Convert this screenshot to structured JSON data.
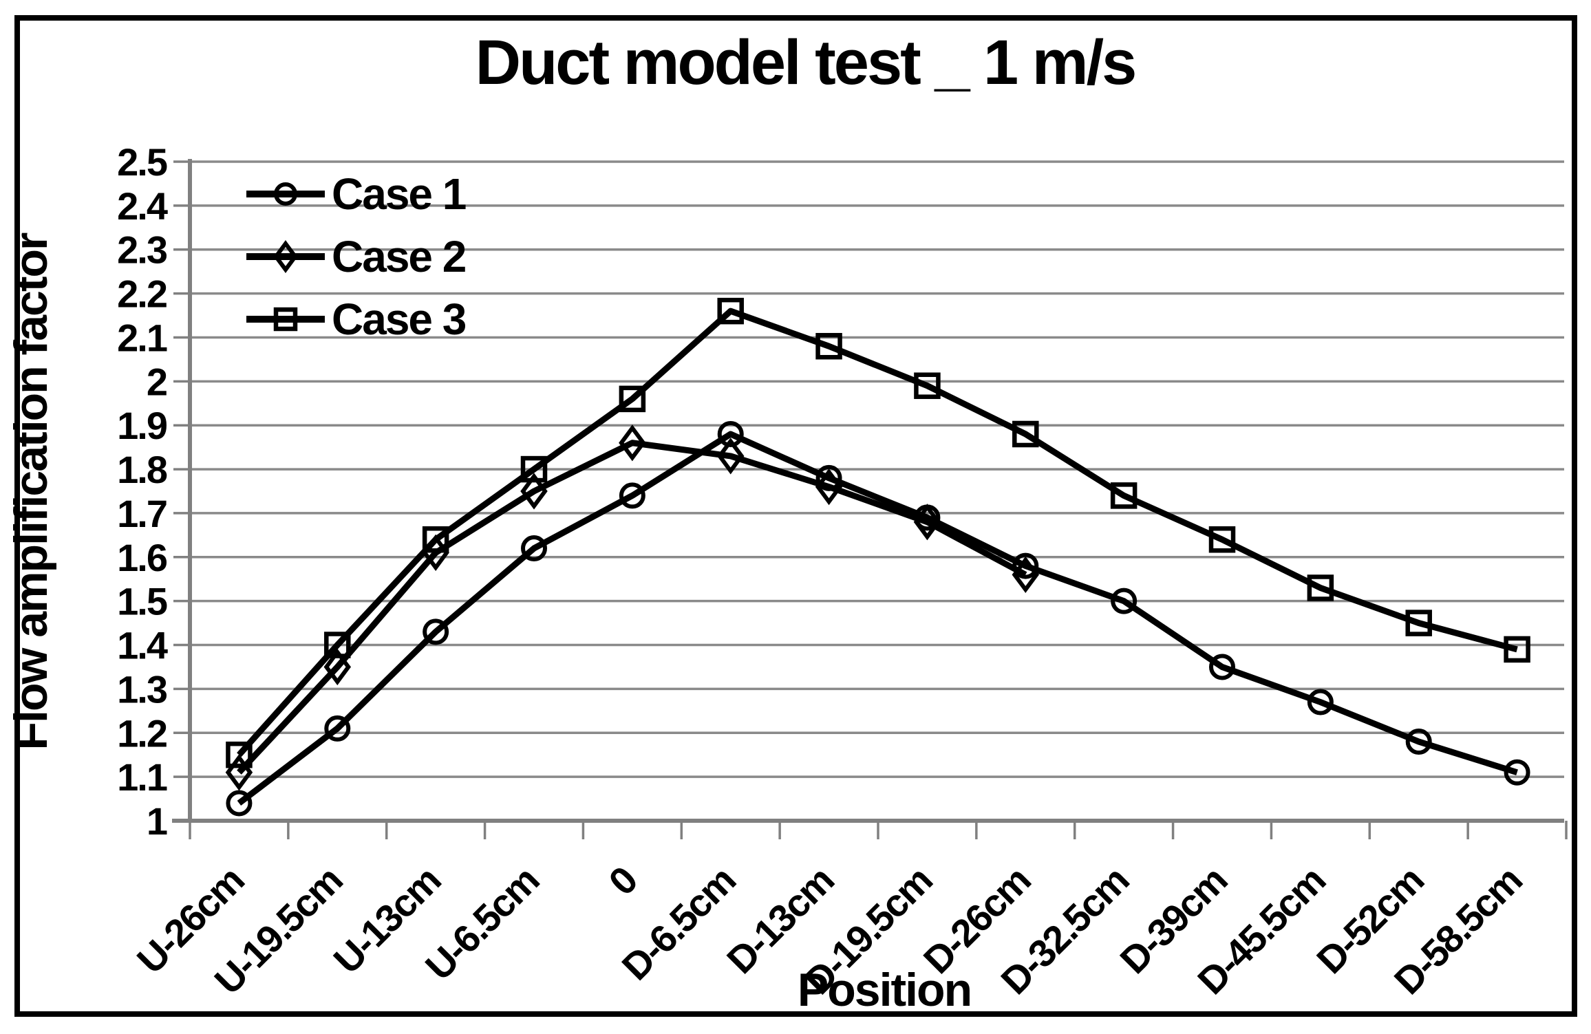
{
  "chart_data": {
    "type": "line",
    "title": "Duct model test _ 1 m/s",
    "xlabel": "Position",
    "ylabel": "Flow amplification factor",
    "ylim": [
      1,
      2.5
    ],
    "ytick_step": 0.1,
    "y_tick_labels": [
      "2.5",
      "2.4",
      "2.3",
      "2.2",
      "2.1",
      "2",
      "1.9",
      "1.8",
      "1.7",
      "1.6",
      "1.5",
      "1.4",
      "1.3",
      "1.2",
      "1.1",
      "1"
    ],
    "grid": true,
    "legend_position": "top-left-inside",
    "categories": [
      "U-26cm",
      "U-19.5cm",
      "U-13cm",
      "U-6.5cm",
      "0",
      "D-6.5cm",
      "D-13cm",
      "D-19.5cm",
      "D-26cm",
      "D-32.5cm",
      "D-39cm",
      "D-45.5cm",
      "D-52cm",
      "D-58.5cm"
    ],
    "series": [
      {
        "name": "Case 1",
        "marker": "circle",
        "values": [
          1.04,
          1.21,
          1.43,
          1.62,
          1.74,
          1.88,
          1.78,
          1.69,
          1.58,
          1.5,
          1.35,
          1.27,
          1.18,
          1.11
        ]
      },
      {
        "name": "Case 2",
        "marker": "diamond",
        "values": [
          1.11,
          1.35,
          1.61,
          1.75,
          1.86,
          1.83,
          1.76,
          1.68,
          1.56,
          null,
          null,
          null,
          null,
          null
        ]
      },
      {
        "name": "Case 3",
        "marker": "square",
        "values": [
          1.15,
          1.4,
          1.64,
          1.8,
          1.96,
          2.16,
          2.08,
          1.99,
          1.88,
          1.74,
          1.64,
          1.53,
          1.45,
          1.39
        ]
      }
    ],
    "colors": {
      "series_line": "#000000",
      "grid": "#8a8a8a",
      "axis": "#808080",
      "frame": "#000000",
      "background": "#ffffff",
      "text": "#000000"
    }
  }
}
